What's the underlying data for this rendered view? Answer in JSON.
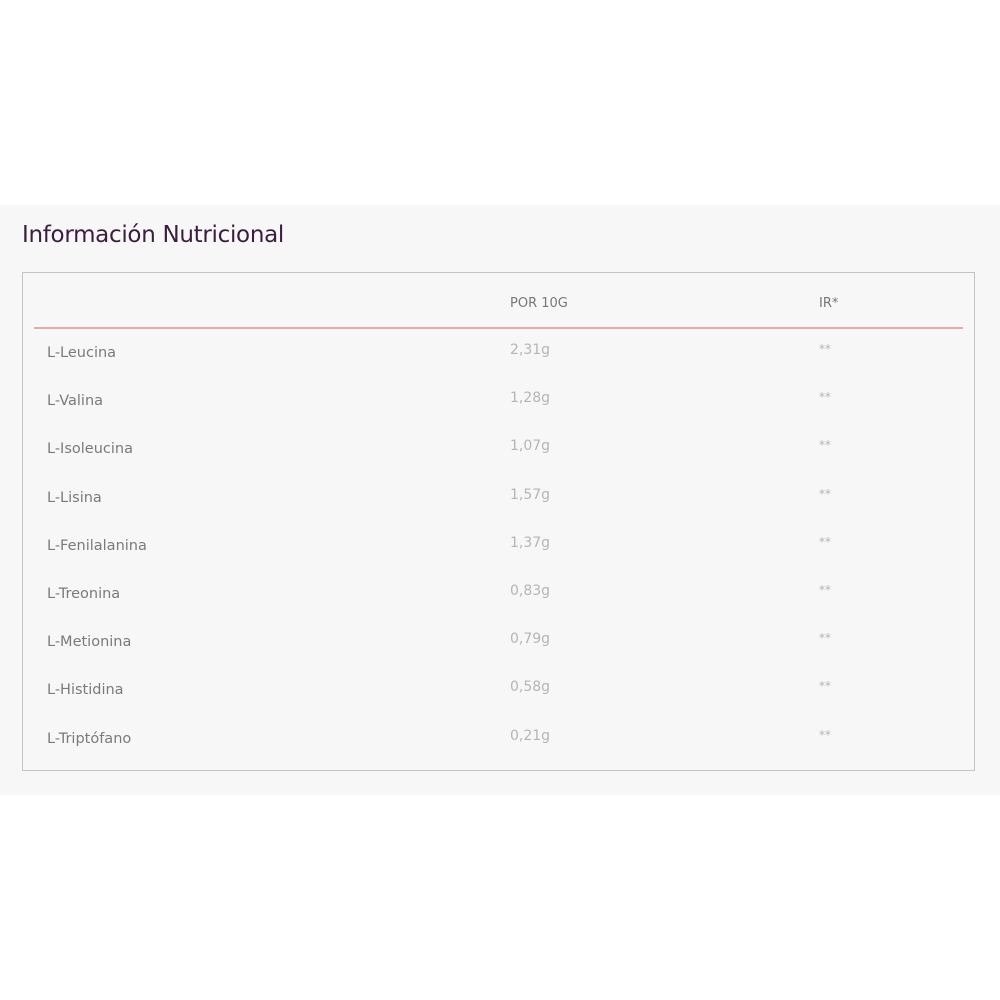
{
  "title": "Información Nutricional",
  "table": {
    "headers": [
      "",
      "POR 10G",
      "IR*"
    ],
    "rows": [
      {
        "name": "L-Leucina",
        "value": "2,31g",
        "ir": "**"
      },
      {
        "name": "L-Valina",
        "value": "1,28g",
        "ir": "**"
      },
      {
        "name": "L-Isoleucina",
        "value": "1,07g",
        "ir": "**"
      },
      {
        "name": "L-Lisina",
        "value": "1,57g",
        "ir": "**"
      },
      {
        "name": "L-Fenilalanina",
        "value": "1,37g",
        "ir": "**"
      },
      {
        "name": "L-Treonina",
        "value": "0,83g",
        "ir": "**"
      },
      {
        "name": "L-Metionina",
        "value": "0,79g",
        "ir": "**"
      },
      {
        "name": "L-Histidina",
        "value": "0,58g",
        "ir": "**"
      },
      {
        "name": "L-Triptófano",
        "value": "0,21g",
        "ir": "**"
      }
    ]
  },
  "colors": {
    "title": "#3b1d3e",
    "header_rule": "#e7a9aa",
    "panel_bg": "#f7f7f7"
  }
}
